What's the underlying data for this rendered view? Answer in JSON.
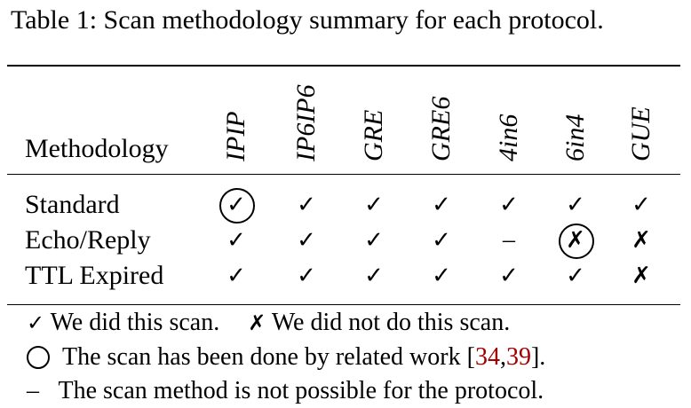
{
  "caption": "Table 1: Scan methodology summary for each protocol.",
  "table": {
    "row_header_label": "Methodology",
    "columns": [
      "IPIP",
      "IP6IP6",
      "GRE",
      "GRE6",
      "4in6",
      "6in4",
      "GUE"
    ],
    "rows": [
      {
        "label": "Standard",
        "cells": [
          "check_circled",
          "check",
          "check",
          "check",
          "check",
          "check",
          "check"
        ]
      },
      {
        "label": "Echo/Reply",
        "cells": [
          "check",
          "check",
          "check",
          "check",
          "dash",
          "cross_circled",
          "cross"
        ]
      },
      {
        "label": "TTL Expired",
        "cells": [
          "check",
          "check",
          "check",
          "check",
          "check",
          "check",
          "cross"
        ]
      }
    ],
    "symbols": {
      "check": "✓",
      "cross": "✗",
      "dash": "–"
    }
  },
  "legend": {
    "check_symbol": "✓",
    "check_text": "We did this scan.",
    "cross_symbol": "✗",
    "cross_text": "We did not do this scan.",
    "circle_text_before": "The scan has been done by related work [",
    "ref_1": "34",
    "ref_sep": ",",
    "ref_2": "39",
    "circle_text_after": "].",
    "dash_symbol": "–",
    "dash_text": "The scan method is not possible for the protocol."
  },
  "colors": {
    "reference": "#a00000",
    "text": "#000000"
  }
}
